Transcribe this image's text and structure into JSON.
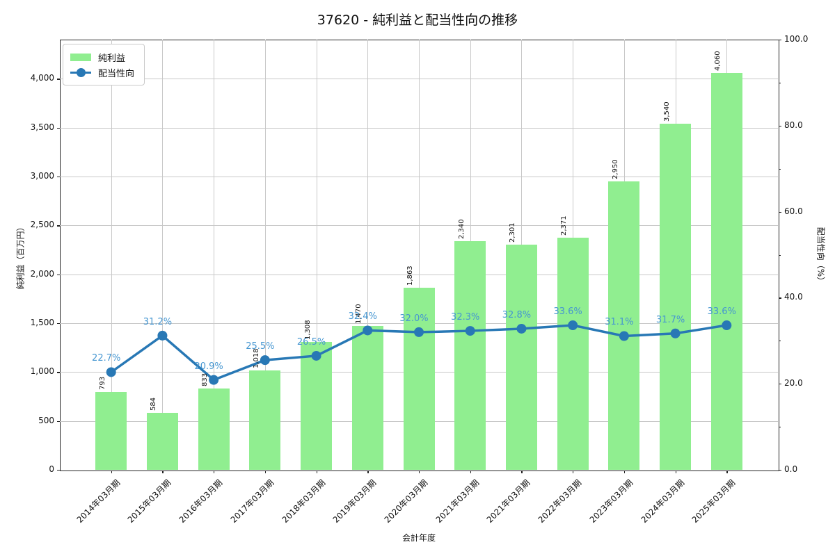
{
  "title": "37620 - 純利益と配当性向の推移",
  "legend": {
    "bar": "純利益",
    "line": "配当性向"
  },
  "axes": {
    "left_label": "純利益（百万円）",
    "right_label": "配当性向（%）",
    "x_label": "会計年度",
    "left_tick_values": [
      0,
      500,
      1000,
      1500,
      2000,
      2500,
      3000,
      3500,
      4000
    ],
    "left_tick_labels": [
      "0",
      "500",
      "1,000",
      "1,500",
      "2,000",
      "2,500",
      "3,000",
      "3,500",
      "4,000"
    ],
    "right_tick_values": [
      0,
      20,
      40,
      60,
      80,
      100
    ],
    "right_tick_labels": [
      "0.0",
      "20.0",
      "40.0",
      "60.0",
      "80.0",
      "100.0"
    ],
    "right_minor_tick_values": [
      10,
      30,
      50,
      70,
      90
    ]
  },
  "chart_data": {
    "type": "bar",
    "subtype": "bar+line combo, dual axis",
    "categories": [
      "2014年03月期",
      "2015年03月期",
      "2016年03月期",
      "2017年03月期",
      "2018年03月期",
      "2019年03月期",
      "2020年03月期",
      "2021年03月期",
      "2021年03月期",
      "2022年03月期",
      "2023年03月期",
      "2024年03月期",
      "2025年03月期"
    ],
    "series": [
      {
        "name": "純利益",
        "type": "bar",
        "axis": "left",
        "color": "#90ee90",
        "values": [
          793,
          584,
          833,
          1018,
          1308,
          1470,
          1863,
          2340,
          2301,
          2371,
          2950,
          3540,
          4060
        ],
        "labels": [
          "793",
          "584",
          "833",
          "1,018",
          "1,308",
          "1,470",
          "1,863",
          "2,340",
          "2,301",
          "2,371",
          "2,950",
          "3,540",
          "4,060"
        ]
      },
      {
        "name": "配当性向",
        "type": "line",
        "axis": "right",
        "color": "#2878b5",
        "values": [
          22.7,
          31.2,
          20.9,
          25.5,
          26.5,
          32.4,
          32.0,
          32.3,
          32.8,
          33.6,
          31.1,
          31.7,
          33.6
        ],
        "labels": [
          "22.7%",
          "31.2%",
          "20.9%",
          "25.5%",
          "26.5%",
          "32.4%",
          "32.0%",
          "32.3%",
          "32.8%",
          "33.6%",
          "31.1%",
          "31.7%",
          "33.6%"
        ]
      }
    ],
    "title": "37620 - 純利益と配当性向の推移",
    "xlabel": "会計年度",
    "ylabel": "純利益（百万円）",
    "y2label": "配当性向（%）",
    "ylim": [
      0,
      4400
    ],
    "y2lim": [
      0,
      100
    ],
    "grid": true,
    "legend_position": "upper left"
  },
  "colors": {
    "bar": "#90ee90",
    "line": "#2878b5",
    "pct_label": "#4596d1",
    "grid": "#c8c8c8",
    "spine": "#222222",
    "text": "#111111",
    "background": "#ffffff"
  }
}
